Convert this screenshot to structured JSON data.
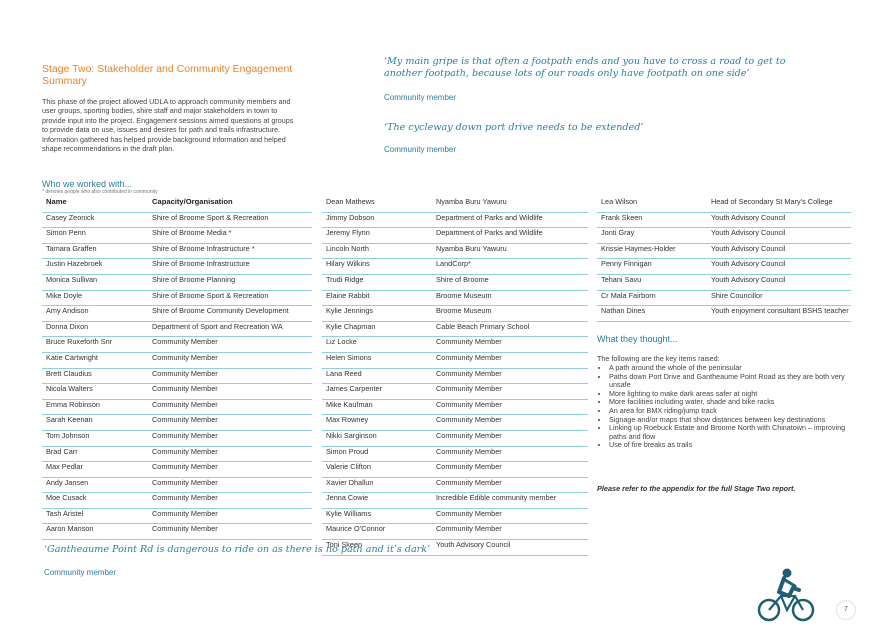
{
  "intro": {
    "heading": "Stage Two: Stakeholder and Community Engagement Summary",
    "paragraph": "This phase of the project allowed UDLA to approach community members and user groups, sporting bodies, shire staff and major stakeholders in town to provide input into the project. Engagement sessions aimed questions at groups to provide data on use, issues and desires for path and trails infrastructure. Information gathered has helped provide background information and helped shape recommendations in the draft plan."
  },
  "quotes": [
    {
      "text": "‘My main gripe is that often a footpath ends and you have to cross a road to get to another footpath, because lots of our roads only have footpath on one side’",
      "attribution": "Community member"
    },
    {
      "text": "‘The cycleway down port drive needs to be extended’",
      "attribution": "Community member"
    },
    {
      "text": "‘Gantheaume Point Rd is dangerous to ride on as there is no path and it’s dark’",
      "attribution": "Community member"
    }
  ],
  "who": {
    "heading": "Who we worked with...",
    "footnote": "* denotes people who also contributed in community",
    "headers": [
      "Name",
      "Capacity/Organisation"
    ],
    "col1": [
      [
        "Casey Zeonick",
        "Shire of Broome Sport & Recreation"
      ],
      [
        "Simon Penn",
        "Shire of Broome Media *"
      ],
      [
        "Tamara Graffen",
        "Shire of Broome Infrastructure *"
      ],
      [
        "Justin Hazebroek",
        "Shire of Broome Infrastructure"
      ],
      [
        "Monica Sullivan",
        "Shire of Broome Planning"
      ],
      [
        "Mike Doyle",
        "Shire of Broome Sport & Recreation"
      ],
      [
        "Amy Andison",
        "Shire of Broome Community Development"
      ],
      [
        "Donna Dixon",
        "Department of Sport and Recreation WA"
      ],
      [
        "Bruce Ruxeforth Snr",
        "Community Member"
      ],
      [
        "Katie Cartwright",
        "Community Member"
      ],
      [
        "Brett Claudius",
        "Community Member"
      ],
      [
        "Nicola Walters",
        "Community Member"
      ],
      [
        "Emma Robinson",
        "Community Member"
      ],
      [
        "Sarah Keenan",
        "Community Member"
      ],
      [
        "Tom Johnson",
        "Community Member"
      ],
      [
        "Brad Carr",
        "Community Member"
      ],
      [
        "Max Pedlar",
        "Community Member"
      ],
      [
        "Andy Jansen",
        "Community Member"
      ],
      [
        "Moe Cusack",
        "Community Member"
      ],
      [
        "Tash Aristel",
        "Community Member"
      ],
      [
        "Aaron Manson",
        "Community Member"
      ]
    ],
    "col2": [
      [
        "Dean Mathews",
        "Nyamba Buru Yawuru"
      ],
      [
        "Jimmy Dobson",
        "Department of Parks and Wildlife"
      ],
      [
        "Jeremy Flynn",
        "Department of Parks and Wildlife"
      ],
      [
        "Lincoln North",
        "Nyamba Buru Yawuru"
      ],
      [
        "Hilary Wilkins",
        "LandCorp*"
      ],
      [
        "Trudi Ridge",
        "Shire of Broome"
      ],
      [
        "Elaine Rabbit",
        "Broome Museum"
      ],
      [
        "Kylie Jennings",
        "Broome Museum"
      ],
      [
        "Kylie Chapman",
        "Cable Beach Primary School"
      ],
      [
        "Liz Locke",
        "Community Member"
      ],
      [
        "Helen Simons",
        "Community Member"
      ],
      [
        "Lana Reed",
        "Community Member"
      ],
      [
        "James Carpenter",
        "Community Member"
      ],
      [
        "Mike Kaufman",
        "Community Member"
      ],
      [
        "Max Rowney",
        "Community Member"
      ],
      [
        "Nikki Sarginson",
        "Community Member"
      ],
      [
        "Simon Proud",
        "Community Member"
      ],
      [
        "Valerie Clifton",
        "Community Member"
      ],
      [
        "Xavier Dhallun",
        "Community Member"
      ],
      [
        "Jenna Cowie",
        "Incredible Edible community member"
      ],
      [
        "Kylie Williams",
        "Community Member"
      ],
      [
        "Maurice O’Connor",
        "Community Member"
      ],
      [
        "Toni Skeen",
        "Youth Advisory Council"
      ]
    ],
    "col3": [
      [
        "Lea Wilson",
        "Head of Secondary St Mary’s College"
      ],
      [
        "Frank Skeen",
        "Youth Advisory Council"
      ],
      [
        "Jonti Gray",
        "Youth Advisory Council"
      ],
      [
        "Krissie Haymes-Holder",
        "Youth Advisory Council"
      ],
      [
        "Penny Finnigan",
        "Youth Advisory Council"
      ],
      [
        "Tehani Savu",
        "Youth Advisory Council"
      ],
      [
        "Cr Mala Fairborn",
        "Shire Councillor"
      ],
      [
        "Nathan Dines",
        "Youth enjoyment consultant BSHS teacher"
      ]
    ]
  },
  "thought": {
    "heading": "What they thought...",
    "intro": "The following are the key items raised:",
    "items": [
      "A path around the whole of the peninsular",
      "Paths down Port Drive and Gantheaume Point Road as they are both very unsafe",
      "More lighting to make dark areas safer at night",
      "More facilities including water, shade and bike racks",
      "An area for BMX riding/jump track",
      "Signage and/or maps that show distances between key destinations",
      "Linking up Roebuck Estate and Broome North with Chinatown – improving paths and flow",
      "Use of fire breaks as trails"
    ],
    "note": "Please refer to the appendix for the full Stage Two report."
  },
  "page_number": "7",
  "colors": {
    "orange": "#e8832a",
    "teal": "#2a7f99",
    "rule": "#8fd0dd",
    "cyclist": "#1e5f73"
  }
}
